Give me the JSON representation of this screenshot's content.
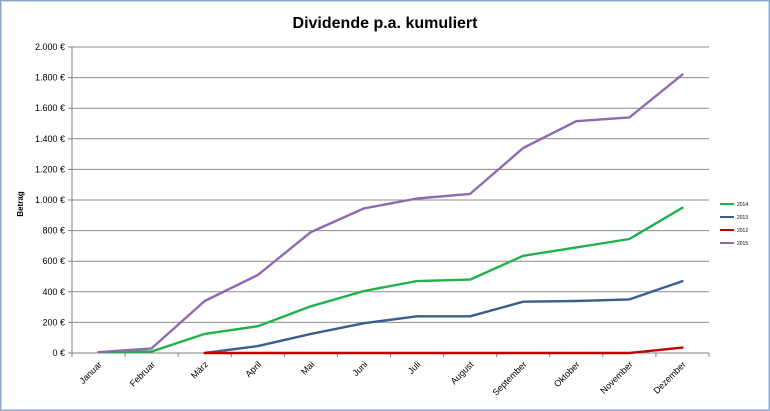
{
  "chart_data": {
    "type": "line",
    "title": "Dividende p.a. kumuliert",
    "xlabel": "",
    "ylabel": "Betrag",
    "ylim": [
      0,
      2000
    ],
    "yticks": [
      0,
      200,
      400,
      600,
      800,
      1000,
      1200,
      1400,
      1600,
      1800,
      2000
    ],
    "ytick_labels": [
      "0 €",
      "200 €",
      "400 €",
      "600 €",
      "800 €",
      "1.000 €",
      "1.200 €",
      "1.400 €",
      "1.600 €",
      "1.800 €",
      "2.000 €"
    ],
    "categories": [
      "Januar",
      "Februar",
      "März",
      "April",
      "Mai",
      "Juni",
      "Juli",
      "August",
      "September",
      "Oktober",
      "November",
      "Dezember"
    ],
    "grid": true,
    "legend_position": "right",
    "series": [
      {
        "name": "2014",
        "color": "#22b14c",
        "values": [
          5,
          10,
          125,
          175,
          305,
          405,
          470,
          480,
          635,
          690,
          745,
          950
        ]
      },
      {
        "name": "2013",
        "color": "#3a5f8f",
        "values": [
          null,
          null,
          0,
          45,
          125,
          195,
          240,
          240,
          335,
          340,
          350,
          470
        ]
      },
      {
        "name": "2012",
        "color": "#c00000",
        "values": [
          null,
          null,
          0,
          0,
          0,
          0,
          0,
          0,
          0,
          0,
          0,
          35
        ]
      },
      {
        "name": "2015",
        "color": "#8e6bb0",
        "values": [
          5,
          30,
          340,
          510,
          790,
          945,
          1010,
          1040,
          1340,
          1515,
          1540,
          1820
        ]
      }
    ]
  }
}
